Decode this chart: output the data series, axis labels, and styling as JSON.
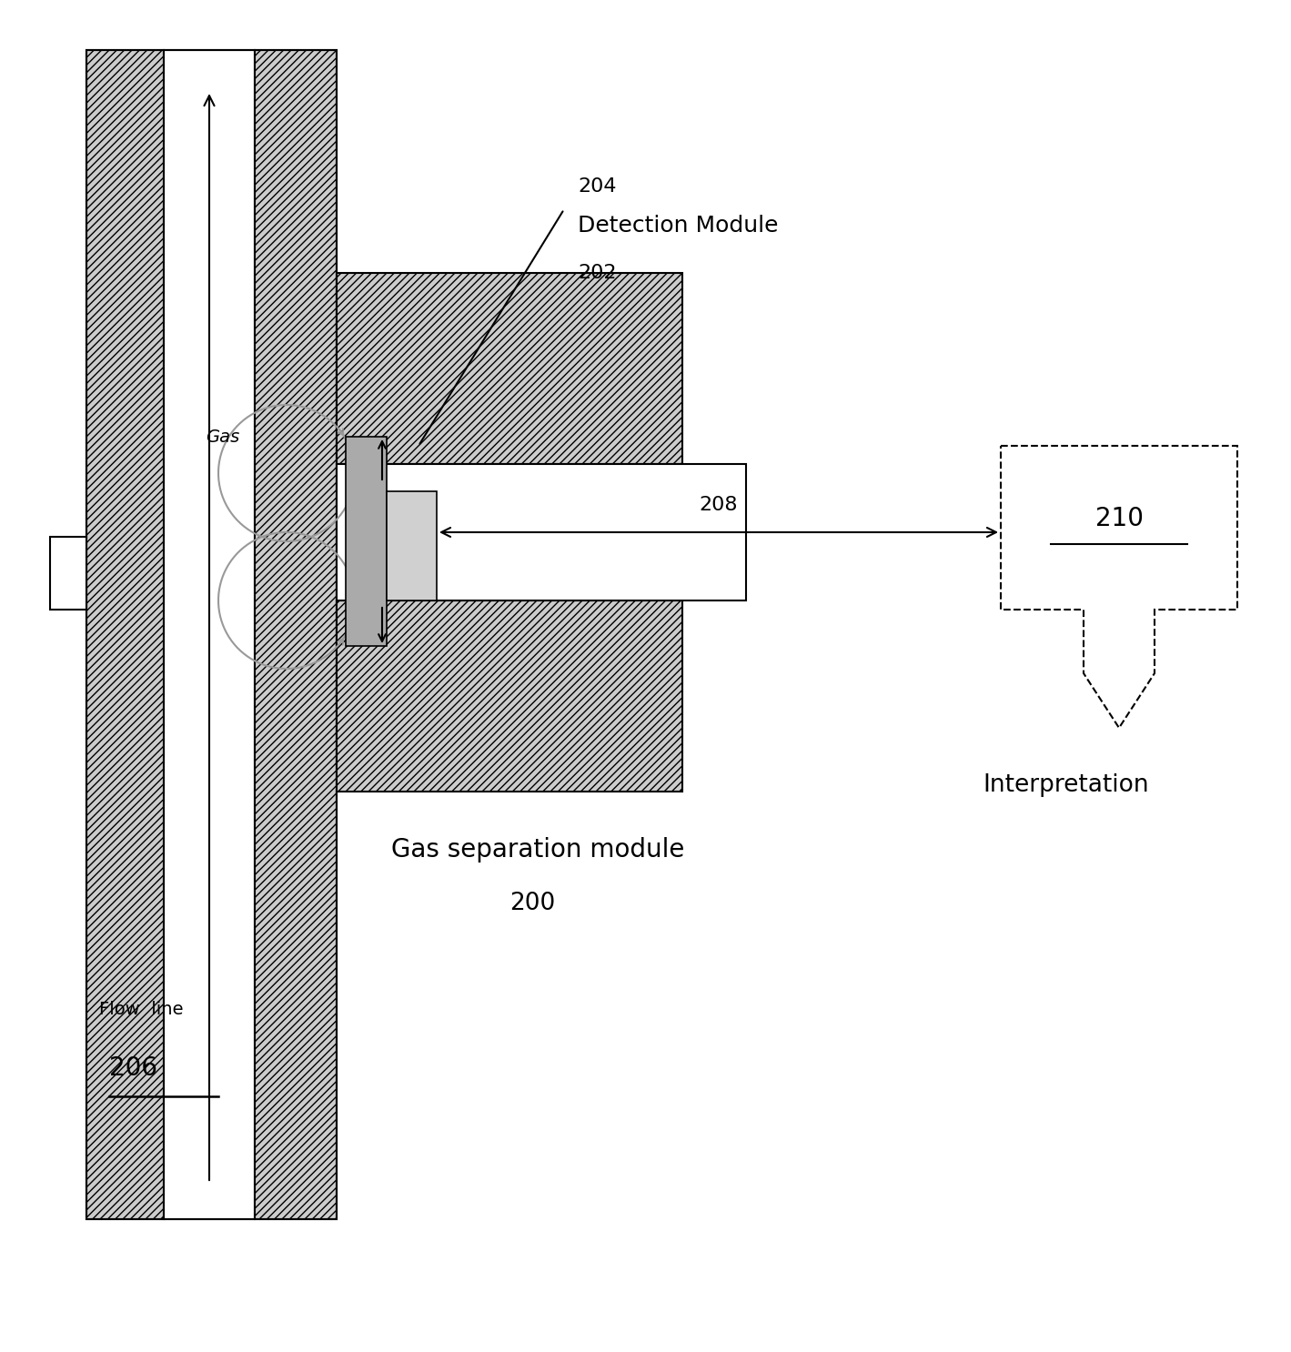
{
  "bg_color": "#ffffff",
  "label_204": "204",
  "label_202": "202",
  "label_208": "208",
  "label_210": "210",
  "label_200": "200",
  "label_206": "206",
  "text_detection_module": "Detection Module",
  "text_gas_separation": "Gas separation module",
  "text_interpretation": "Interpretation",
  "text_flow_line": "Flow  line",
  "text_gas": "Gas"
}
